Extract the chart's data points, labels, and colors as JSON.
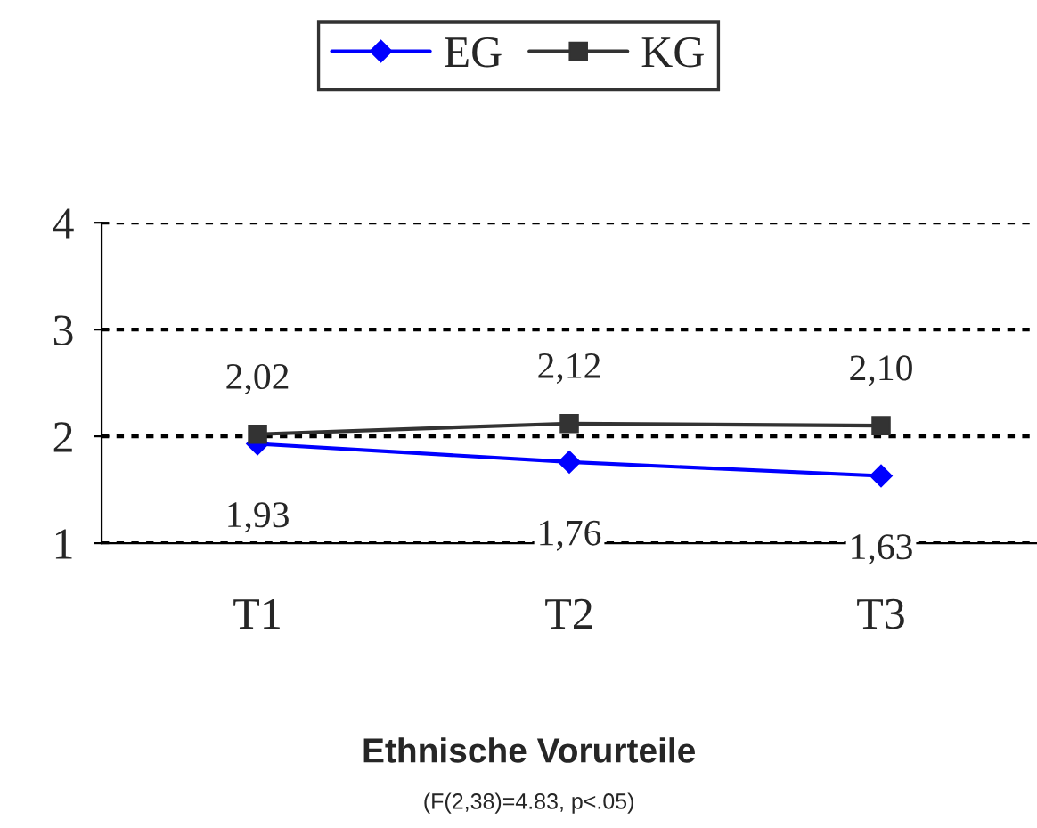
{
  "chart_data": {
    "type": "line",
    "title": "Ethnische Vorurteile",
    "annotations": [
      "(F(2,38)=4.83, p<.05)"
    ],
    "categories": [
      "T1",
      "T2",
      "T3"
    ],
    "series": [
      {
        "name": "EG",
        "color": "#0000ff",
        "marker": "diamond",
        "values": [
          1.93,
          1.76,
          1.63
        ],
        "value_labels": [
          "1,93",
          "1,76",
          "1,63"
        ]
      },
      {
        "name": "KG",
        "color": "#333333",
        "marker": "square",
        "values": [
          2.02,
          2.12,
          2.1
        ],
        "value_labels": [
          "2,02",
          "2,12",
          "2,10"
        ]
      }
    ],
    "ylim": [
      1,
      4
    ],
    "yticks": [
      1,
      2,
      3,
      4
    ],
    "grid": "y",
    "legend": "top",
    "line_style": "solid"
  }
}
